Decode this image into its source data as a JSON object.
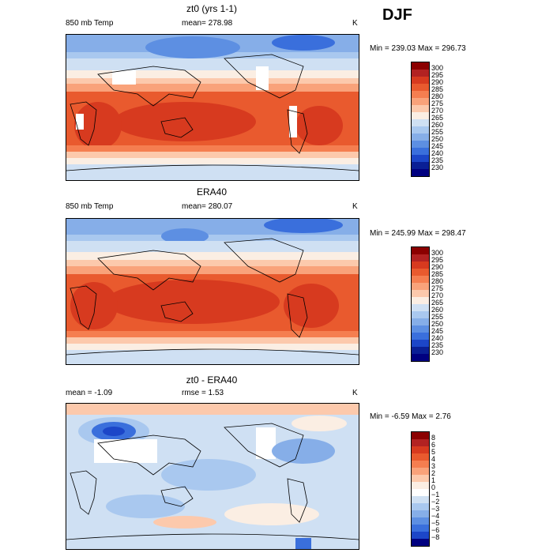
{
  "season": "DJF",
  "panels": [
    {
      "title": "zt0 (yrs 1-1)",
      "left_label": "850 mb Temp",
      "center_label": "mean= 278.98",
      "unit": "K",
      "minmax": "Min = 239.03 Max = 296.73",
      "scale_labels": [
        "300",
        "295",
        "290",
        "285",
        "280",
        "275",
        "270",
        "265",
        "260",
        "255",
        "250",
        "245",
        "240",
        "235",
        "230"
      ]
    },
    {
      "title": "ERA40",
      "left_label": "850 mb Temp",
      "center_label": "mean= 280.07",
      "unit": "K",
      "minmax": "Min = 245.99 Max = 298.47",
      "scale_labels": [
        "300",
        "295",
        "290",
        "285",
        "280",
        "275",
        "270",
        "265",
        "260",
        "255",
        "250",
        "245",
        "240",
        "235",
        "230"
      ]
    },
    {
      "title": "zt0 - ERA40",
      "left_label": "mean =   -1.09",
      "center_label": "rmse =    1.53",
      "unit": "K",
      "minmax": "Min =  -6.59 Max =    2.76",
      "scale_labels": [
        "8",
        "6",
        "5",
        "4",
        "3",
        "2",
        "1",
        "0",
        "−1",
        "−2",
        "−3",
        "−4",
        "−5",
        "−6",
        "−8"
      ]
    }
  ],
  "colors": {
    "temp_scale": [
      "#8b0000",
      "#b22222",
      "#d73a1f",
      "#e95a2e",
      "#f57e50",
      "#f9a27a",
      "#fcc9ac",
      "#fbeee3",
      "#cfe0f3",
      "#a9c8ef",
      "#86aee8",
      "#5d8fe2",
      "#3a6fdc",
      "#1c46c8",
      "#0a1f95",
      "#000080"
    ],
    "diff_scale": [
      "#8b0000",
      "#b22222",
      "#d73a1f",
      "#e95a2e",
      "#f57e50",
      "#f9a27a",
      "#fcc9ac",
      "#fbeee3",
      "#ffffff",
      "#cfe0f3",
      "#a9c8ef",
      "#86aee8",
      "#5d8fe2",
      "#3a6fdc",
      "#1c46c8",
      "#000080"
    ]
  }
}
